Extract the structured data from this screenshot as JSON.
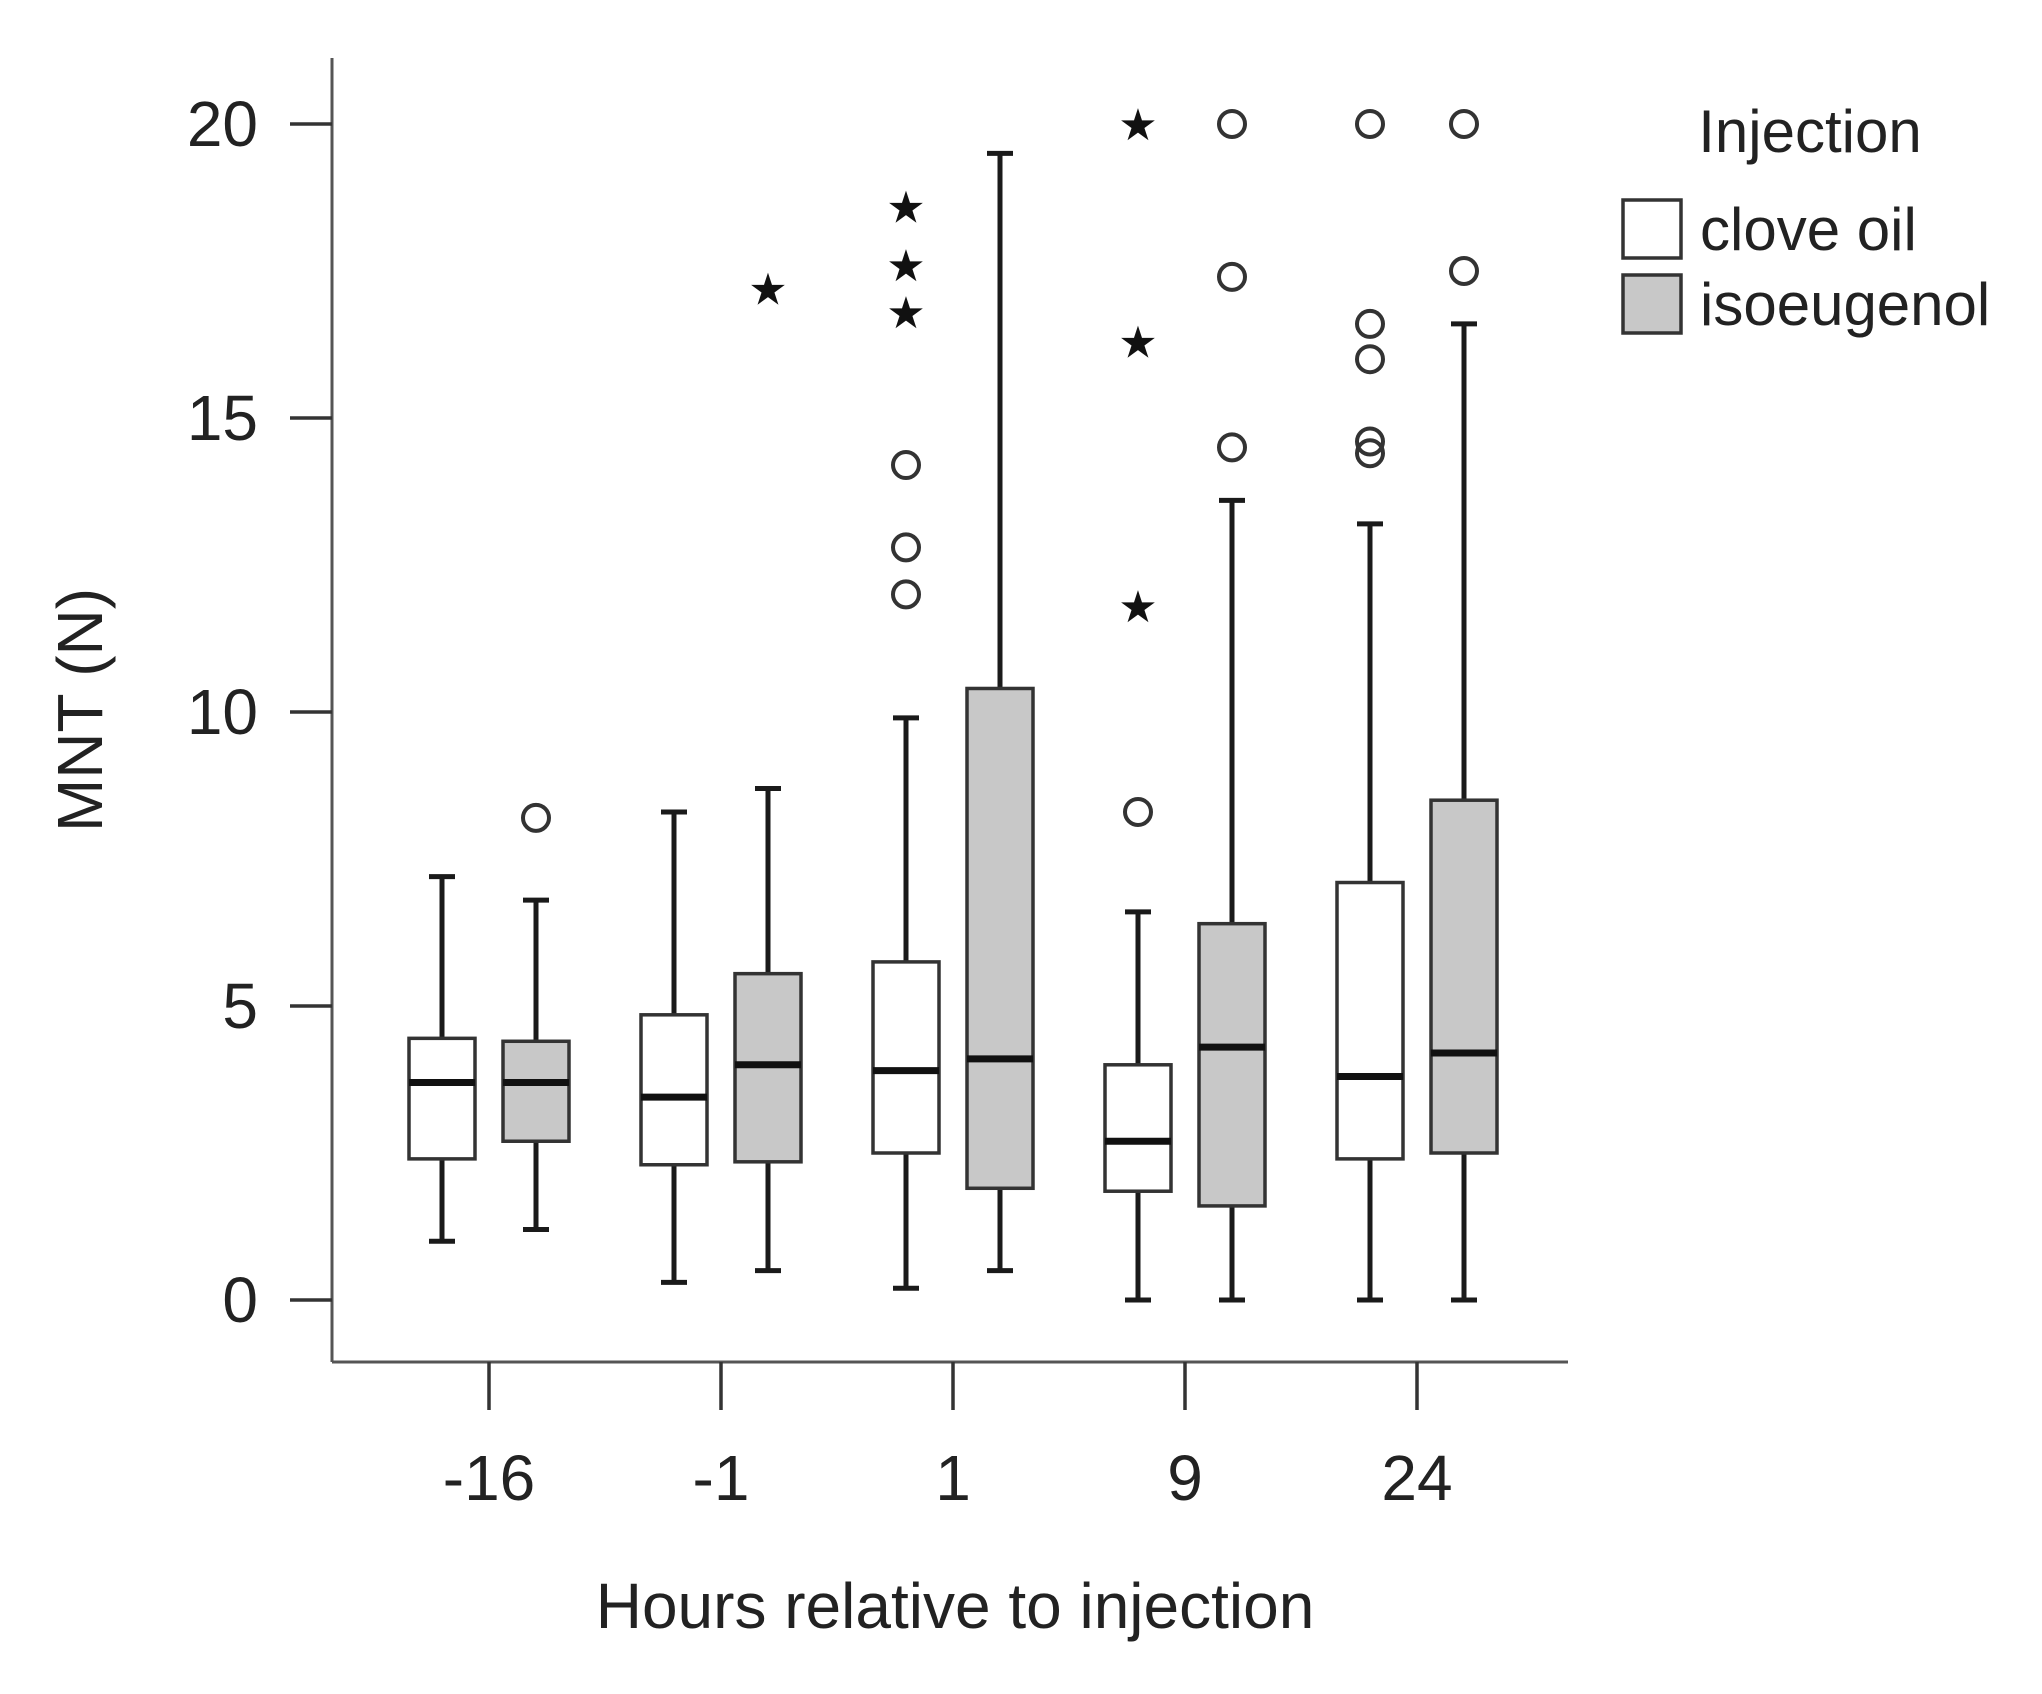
{
  "chart_data": {
    "type": "boxplot",
    "title": "",
    "xlabel": "Hours relative to injection",
    "ylabel": "MNT (N)",
    "ylim": [
      -1.1,
      21.1
    ],
    "yticks": [
      0,
      5,
      10,
      15,
      20
    ],
    "categories": [
      "-16",
      "-1",
      "1",
      "9",
      "24"
    ],
    "legend": {
      "title": "Injection",
      "position": "top-right",
      "entries": [
        "clove oil",
        "isoeugenol"
      ]
    },
    "colors": {
      "clove oil": "#ffffff",
      "isoeugenol": "#c8c8c8"
    },
    "series": [
      {
        "name": "clove oil",
        "color": "#ffffff",
        "boxes": [
          {
            "category": "-16",
            "min": 1.0,
            "q1": 2.4,
            "median": 3.7,
            "q3": 4.45,
            "max": 7.2,
            "outliers": [],
            "extremes": []
          },
          {
            "category": "-1",
            "min": 0.3,
            "q1": 2.3,
            "median": 3.45,
            "q3": 4.85,
            "max": 8.3,
            "outliers": [],
            "extremes": []
          },
          {
            "category": "1",
            "min": 0.2,
            "q1": 2.5,
            "median": 3.9,
            "q3": 5.75,
            "max": 9.9,
            "outliers": [
              12.0,
              12.8,
              14.2
            ],
            "extremes": [
              16.8,
              17.6,
              18.6
            ]
          },
          {
            "category": "9",
            "min": 0.0,
            "q1": 1.85,
            "median": 2.7,
            "q3": 4.0,
            "max": 6.6,
            "outliers": [
              8.3
            ],
            "extremes": [
              11.8,
              16.3,
              20.0
            ]
          },
          {
            "category": "24",
            "min": 0.0,
            "q1": 2.4,
            "median": 3.8,
            "q3": 7.1,
            "max": 13.2,
            "outliers": [
              14.4,
              14.6,
              16.0,
              16.6,
              20.0
            ],
            "extremes": []
          }
        ]
      },
      {
        "name": "isoeugenol",
        "color": "#c8c8c8",
        "boxes": [
          {
            "category": "-16",
            "min": 1.2,
            "q1": 2.7,
            "median": 3.7,
            "q3": 4.4,
            "max": 6.8,
            "outliers": [
              8.2
            ],
            "extremes": []
          },
          {
            "category": "-1",
            "min": 0.5,
            "q1": 2.35,
            "median": 4.0,
            "q3": 5.55,
            "max": 8.7,
            "outliers": [],
            "extremes": [
              17.2
            ]
          },
          {
            "category": "1",
            "min": 0.5,
            "q1": 1.9,
            "median": 4.1,
            "q3": 10.4,
            "max": 19.5,
            "outliers": [],
            "extremes": []
          },
          {
            "category": "9",
            "min": 0.0,
            "q1": 1.6,
            "median": 4.3,
            "q3": 6.4,
            "max": 13.6,
            "outliers": [
              14.5,
              17.4,
              20.0
            ],
            "extremes": []
          },
          {
            "category": "24",
            "min": 0.0,
            "q1": 2.5,
            "median": 4.2,
            "q3": 8.5,
            "max": 16.6,
            "outliers": [
              17.5,
              20.0
            ],
            "extremes": []
          }
        ]
      }
    ]
  }
}
